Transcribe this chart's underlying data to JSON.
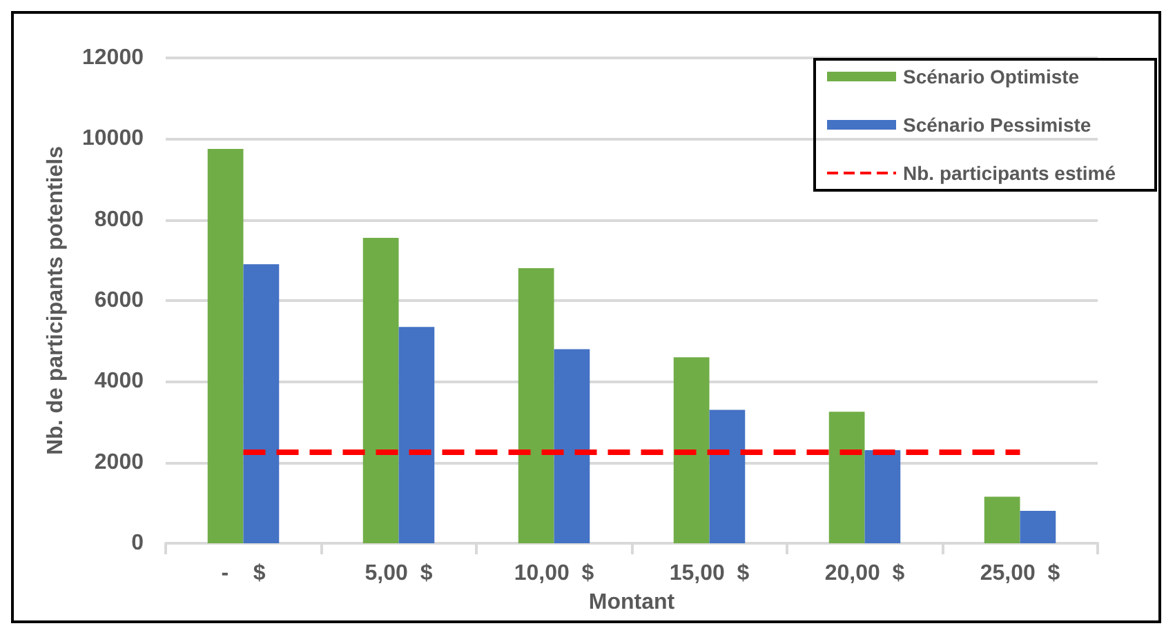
{
  "chart_data": {
    "type": "bar",
    "xlabel": "Montant",
    "ylabel": "Nb. de participants potentiels",
    "categories": [
      "-    $",
      "5,00  $",
      "10,00  $",
      "15,00  $",
      "20,00  $",
      "25,00  $"
    ],
    "series": [
      {
        "name": "Scénario Optimiste",
        "color": "#70ad47",
        "values": [
          9750,
          7550,
          6800,
          4600,
          3250,
          1150
        ]
      },
      {
        "name": "Scénario Pessimiste",
        "color": "#4472c4",
        "values": [
          6900,
          5350,
          4800,
          3300,
          2300,
          800
        ]
      },
      {
        "name": "Nb. participants estimé",
        "type": "line",
        "color": "#ff0000",
        "line_style": "dashed",
        "marker": "none",
        "values": [
          2250,
          2250,
          2250,
          2250,
          2250,
          2250
        ]
      }
    ],
    "ylim": [
      0,
      12000
    ],
    "yticks": [
      0,
      2000,
      4000,
      6000,
      8000,
      10000,
      12000
    ],
    "grid": "y",
    "legend": "top right"
  }
}
